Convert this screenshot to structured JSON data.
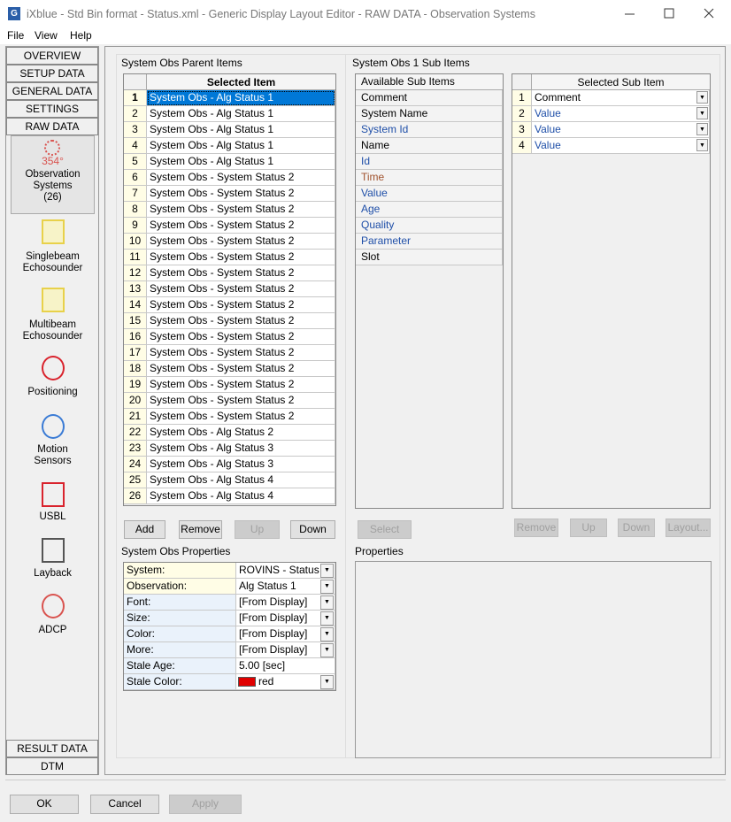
{
  "window": {
    "title": "iXblue - Std Bin format - Status.xml - Generic Display Layout Editor -  RAW DATA -  Observation Systems"
  },
  "menu": [
    "File",
    "View",
    "Help"
  ],
  "nav": {
    "top": [
      "OVERVIEW",
      "SETUP DATA",
      "GENERAL DATA",
      "SETTINGS",
      "RAW DATA"
    ],
    "heading_badge": "354°",
    "items": [
      [
        "Observation",
        "Systems",
        "(26)"
      ],
      [
        "Singlebeam",
        "Echosounder"
      ],
      [
        "Multibeam",
        "Echosounder"
      ],
      [
        "Positioning"
      ],
      [
        "Motion",
        "Sensors"
      ],
      [
        "USBL"
      ],
      [
        "Layback"
      ],
      [
        "ADCP"
      ]
    ],
    "bottom": [
      "RESULT DATA",
      "DTM"
    ]
  },
  "parent": {
    "title": "System Obs Parent Items",
    "header": "Selected Item",
    "rows": [
      [
        "1",
        "System Obs  -  Alg Status 1"
      ],
      [
        "2",
        "System Obs  -  Alg Status 1"
      ],
      [
        "3",
        "System Obs  -  Alg Status 1"
      ],
      [
        "4",
        "System Obs  -  Alg Status 1"
      ],
      [
        "5",
        "System Obs  -  Alg Status 1"
      ],
      [
        "6",
        "System Obs  -  System Status 2"
      ],
      [
        "7",
        "System Obs  -  System Status 2"
      ],
      [
        "8",
        "System Obs  -  System Status 2"
      ],
      [
        "9",
        "System Obs  -  System Status 2"
      ],
      [
        "10",
        "System Obs  -  System Status 2"
      ],
      [
        "11",
        "System Obs  -  System Status 2"
      ],
      [
        "12",
        "System Obs  -  System Status 2"
      ],
      [
        "13",
        "System Obs  -  System Status 2"
      ],
      [
        "14",
        "System Obs  -  System Status 2"
      ],
      [
        "15",
        "System Obs  -  System Status 2"
      ],
      [
        "16",
        "System Obs  -  System Status 2"
      ],
      [
        "17",
        "System Obs  -  System Status 2"
      ],
      [
        "18",
        "System Obs  -  System Status 2"
      ],
      [
        "19",
        "System Obs  -  System Status 2"
      ],
      [
        "20",
        "System Obs  -  System Status 2"
      ],
      [
        "21",
        "System Obs  -  System Status 2"
      ],
      [
        "22",
        "System Obs  -  Alg Status 2"
      ],
      [
        "23",
        "System Obs  -  Alg Status 3"
      ],
      [
        "24",
        "System Obs  -  Alg Status 3"
      ],
      [
        "25",
        "System Obs  -  Alg Status 4"
      ],
      [
        "26",
        "System Obs  -  Alg Status 4"
      ]
    ],
    "buttons": [
      "Add",
      "Remove",
      "Up",
      "Down"
    ]
  },
  "sub": {
    "title": "System Obs 1 Sub Items",
    "available_header": "Available Sub Items",
    "available": [
      {
        "text": "Comment",
        "color": "#000000"
      },
      {
        "text": "System Name",
        "color": "#000000"
      },
      {
        "text": "System Id",
        "color": "#1f4fa8"
      },
      {
        "text": "Name",
        "color": "#000000"
      },
      {
        "text": "Id",
        "color": "#1f4fa8"
      },
      {
        "text": "Time",
        "color": "#a0522d"
      },
      {
        "text": "Value",
        "color": "#1f4fa8"
      },
      {
        "text": "Age",
        "color": "#1f4fa8"
      },
      {
        "text": "Quality",
        "color": "#1f4fa8"
      },
      {
        "text": "Parameter",
        "color": "#1f4fa8"
      },
      {
        "text": "Slot",
        "color": "#000000"
      }
    ],
    "selected_header": "Selected Sub Item",
    "selected": [
      {
        "n": "1",
        "text": "Comment",
        "color": "#000000"
      },
      {
        "n": "2",
        "text": "Value",
        "color": "#1f4fa8"
      },
      {
        "n": "3",
        "text": "Value",
        "color": "#1f4fa8"
      },
      {
        "n": "4",
        "text": "Value",
        "color": "#1f4fa8"
      }
    ],
    "select_button": "Select",
    "buttons": [
      "Remove",
      "Up",
      "Down",
      "Layout..."
    ]
  },
  "props": {
    "title": "System Obs Properties",
    "rows": [
      [
        "System:",
        "ROVINS - Status"
      ],
      [
        "Observation:",
        "Alg Status 1"
      ],
      [
        "Font:",
        "[From Display]"
      ],
      [
        "Size:",
        "[From Display]"
      ],
      [
        "Color:",
        "[From Display]"
      ],
      [
        "More:",
        "[From Display]"
      ],
      [
        "Stale Age:",
        "5.00 [sec]"
      ],
      [
        "Stale Color:",
        "red"
      ]
    ]
  },
  "properties": {
    "title": "Properties"
  },
  "footer": [
    "OK",
    "Cancel",
    "Apply"
  ]
}
